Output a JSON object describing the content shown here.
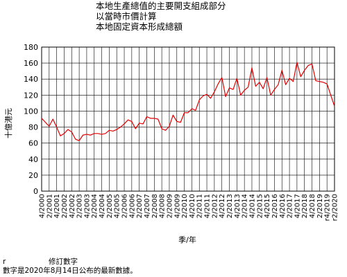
{
  "chart_data": {
    "type": "line",
    "title_lines": [
      "本地生產總值的主要開支組成部分",
      "以當時市價計算",
      "本地固定資本形成總額"
    ],
    "ylabel": "十億港元",
    "xlabel": "季/年",
    "ylim": [
      0,
      180
    ],
    "yticks": [
      0,
      20,
      40,
      60,
      80,
      100,
      120,
      140,
      160,
      180
    ],
    "grid": true,
    "legend": "none",
    "line_color": "#e00000",
    "x_tick_labels": [
      "4/2000",
      "2/2001",
      "4/2001",
      "2/2002",
      "4/2002",
      "2/2003",
      "4/2003",
      "2/2004",
      "4/2004",
      "2/2005",
      "4/2005",
      "2/2006",
      "4/2006",
      "2/2007",
      "4/2007",
      "2/2008",
      "4/2008",
      "2/2009",
      "4/2009",
      "2/2010",
      "4/2010",
      "2/2011",
      "4/2011",
      "2/2012",
      "4/2012",
      "2/2013",
      "4/2013",
      "2/2014",
      "4/2014",
      "2/2015",
      "4/2015",
      "2/2016",
      "4/2016",
      "2/2017",
      "4/2017",
      "2/2018",
      "4/2018",
      "2/2019",
      "r4/2019",
      "r2/2020"
    ],
    "x": [
      "4/2000",
      "1/2001",
      "2/2001",
      "3/2001",
      "4/2001",
      "1/2002",
      "2/2002",
      "3/2002",
      "4/2002",
      "1/2003",
      "2/2003",
      "3/2003",
      "4/2003",
      "1/2004",
      "2/2004",
      "3/2004",
      "4/2004",
      "1/2005",
      "2/2005",
      "3/2005",
      "4/2005",
      "1/2006",
      "2/2006",
      "3/2006",
      "4/2006",
      "1/2007",
      "2/2007",
      "3/2007",
      "4/2007",
      "1/2008",
      "2/2008",
      "3/2008",
      "4/2008",
      "1/2009",
      "2/2009",
      "3/2009",
      "4/2009",
      "1/2010",
      "2/2010",
      "3/2010",
      "4/2010",
      "1/2011",
      "2/2011",
      "3/2011",
      "4/2011",
      "1/2012",
      "2/2012",
      "3/2012",
      "4/2012",
      "1/2013",
      "2/2013",
      "3/2013",
      "4/2013",
      "1/2014",
      "2/2014",
      "3/2014",
      "4/2014",
      "1/2015",
      "2/2015",
      "3/2015",
      "4/2015",
      "1/2016",
      "2/2016",
      "3/2016",
      "4/2016",
      "1/2017",
      "2/2017",
      "3/2017",
      "4/2017",
      "1/2018",
      "2/2018",
      "3/2018",
      "4/2018",
      "1/2019",
      "2/2019",
      "3/2019",
      "4/2019",
      "1/2020",
      "2/2020"
    ],
    "values": [
      91,
      86,
      81,
      90,
      80,
      69,
      72,
      77,
      74,
      65,
      63,
      70,
      71,
      70,
      72,
      72,
      71,
      72,
      76,
      75,
      77,
      80,
      84,
      89,
      87,
      78,
      85,
      84,
      93,
      91,
      91,
      90,
      78,
      76,
      81,
      95,
      87,
      86,
      98,
      98,
      103,
      101,
      114,
      119,
      121,
      116,
      124,
      134,
      142,
      118,
      129,
      127,
      141,
      120,
      126,
      130,
      154,
      131,
      136,
      128,
      142,
      120,
      127,
      133,
      151,
      133,
      141,
      137,
      161,
      143,
      151,
      157,
      159,
      138,
      137,
      136,
      134,
      120,
      106
    ]
  },
  "footer": {
    "revised_marker": "r",
    "revised_label": "修訂數字",
    "note": "數字是2020年8月14日公布的最新數據。"
  }
}
